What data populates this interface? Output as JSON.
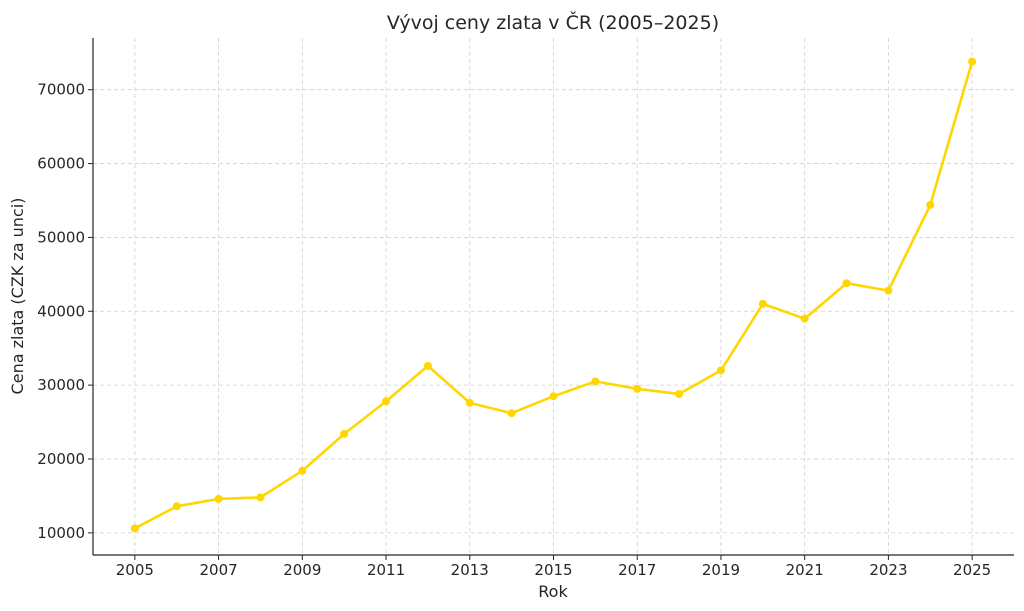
{
  "chart_data": {
    "type": "line",
    "title": "Vývoj ceny zlata v ČR (2005–2025)",
    "xlabel": "Rok",
    "ylabel": "Cena zlata (CZK za unci)",
    "x": [
      2005,
      2006,
      2007,
      2008,
      2009,
      2010,
      2011,
      2012,
      2013,
      2014,
      2015,
      2016,
      2017,
      2018,
      2019,
      2020,
      2021,
      2022,
      2023,
      2024,
      2025
    ],
    "series": [
      {
        "name": "",
        "color": "#FFD700",
        "values": [
          10600,
          13600,
          14600,
          14800,
          18400,
          23400,
          27800,
          32600,
          27600,
          26200,
          28500,
          30500,
          29500,
          28800,
          32000,
          41000,
          39000,
          43800,
          42800,
          54400,
          73800
        ]
      }
    ],
    "x_ticks": [
      "2005",
      "2007",
      "2009",
      "2011",
      "2013",
      "2015",
      "2017",
      "2019",
      "2021",
      "2023",
      "2025"
    ],
    "y_ticks": [
      "10000",
      "20000",
      "30000",
      "40000",
      "50000",
      "60000",
      "70000"
    ],
    "xlim": [
      2004,
      2026
    ],
    "ylim": [
      7000,
      77000
    ],
    "grid": true
  }
}
